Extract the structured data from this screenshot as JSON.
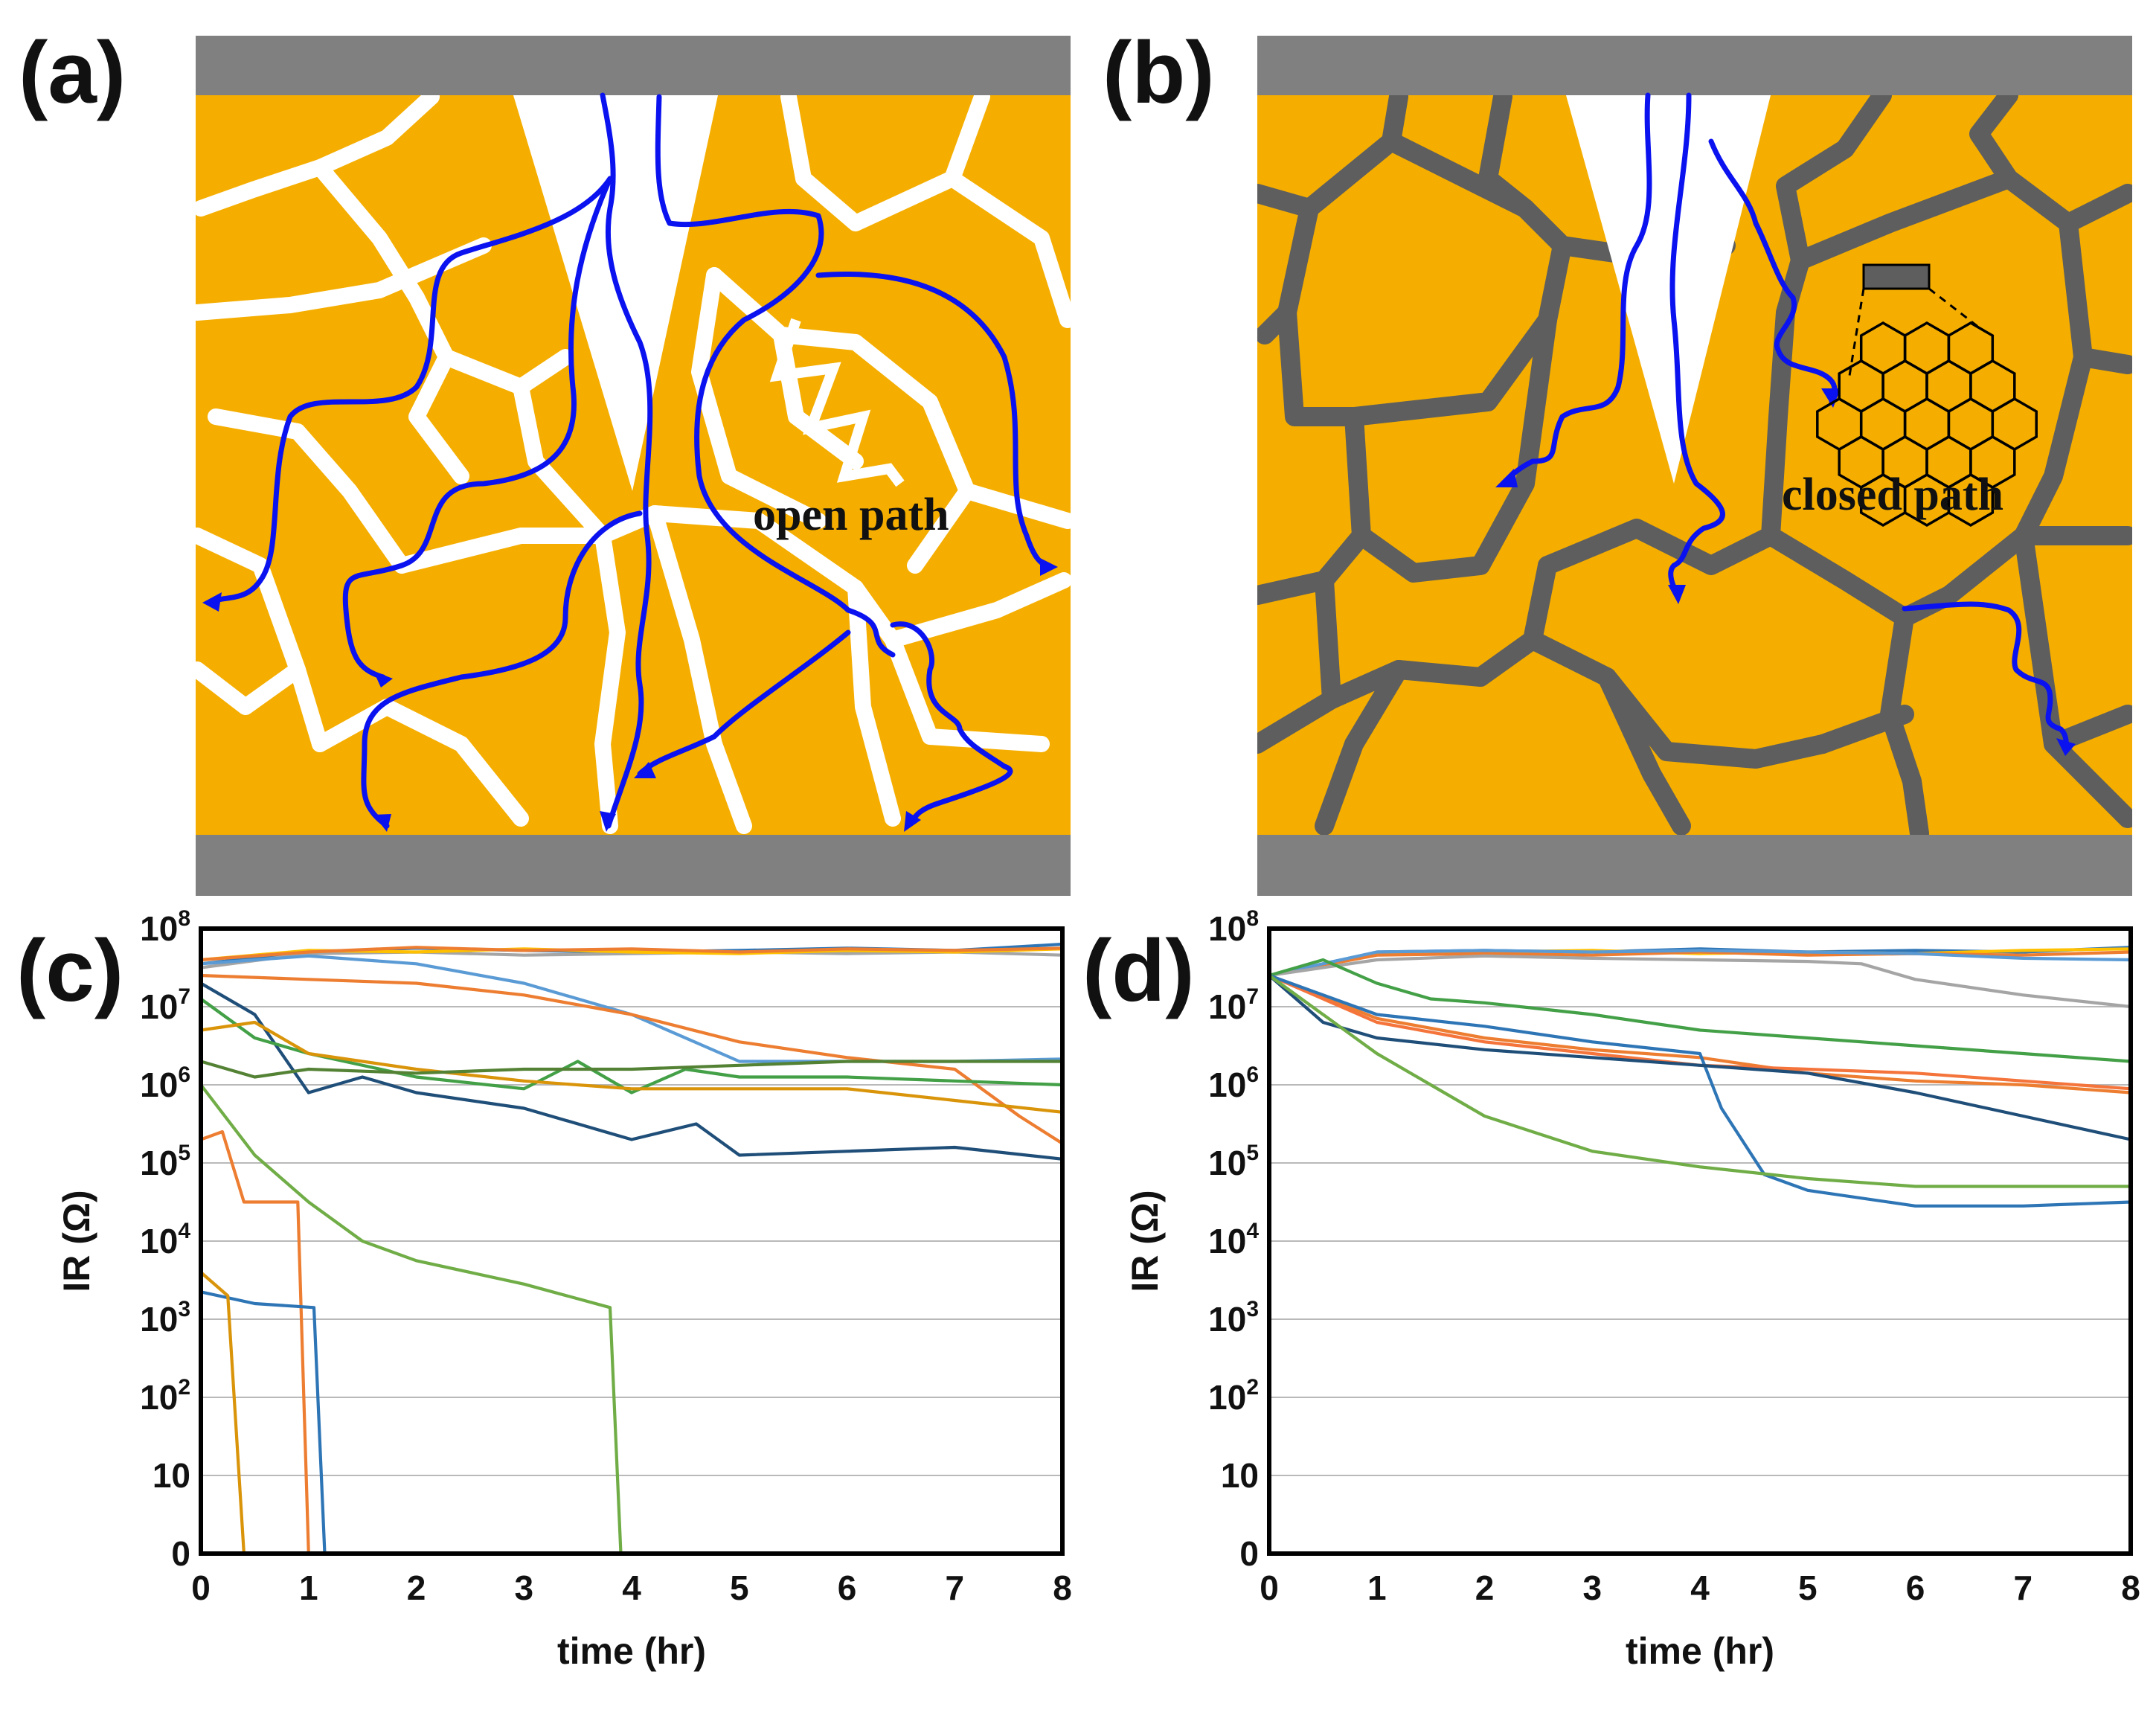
{
  "panels": {
    "a": {
      "label": "(a)",
      "annotation": "open path"
    },
    "b": {
      "label": "(b)",
      "annotation": "closed path"
    },
    "c": {
      "label": "(c)"
    },
    "d": {
      "label": "(d)"
    }
  },
  "colors": {
    "ceramic": "#F5AE00",
    "electrode": "#808080",
    "open_boundary": "#FFFFFF",
    "coated_boundary": "#5E5E5E",
    "leakage_path": "#0A12F0"
  },
  "icons": {
    "graphene_inset": "graphene-hexagon-icon"
  },
  "axes": {
    "x_label": "time (hr)",
    "y_label": "IR (Ω)",
    "x_ticks": [
      "0",
      "1",
      "2",
      "3",
      "4",
      "5",
      "6",
      "7",
      "8"
    ],
    "y_ticks": [
      {
        "base": "0",
        "exp": ""
      },
      {
        "base": "10",
        "exp": ""
      },
      {
        "base": "10",
        "exp": "2"
      },
      {
        "base": "10",
        "exp": "3"
      },
      {
        "base": "10",
        "exp": "4"
      },
      {
        "base": "10",
        "exp": "5"
      },
      {
        "base": "10",
        "exp": "6"
      },
      {
        "base": "10",
        "exp": "7"
      },
      {
        "base": "10",
        "exp": "8"
      }
    ]
  },
  "chart_data": [
    {
      "panel": "(c)",
      "type": "line",
      "title": "",
      "xlabel": "time (hr)",
      "ylabel": "IR (Ω)",
      "xlim": [
        0,
        8
      ],
      "ylim": [
        0,
        8
      ],
      "y_scale_note": "log10 decades; 0 marks failure (short)",
      "series": [
        {
          "name": "c1",
          "color": "#2E75B6",
          "x": [
            0,
            1,
            2,
            3,
            4,
            5,
            6,
            7,
            8
          ],
          "y": [
            7.55,
            7.7,
            7.75,
            7.72,
            7.7,
            7.72,
            7.75,
            7.72,
            7.8
          ]
        },
        {
          "name": "c2",
          "color": "#A5A5A5",
          "x": [
            0,
            1,
            2,
            3,
            4,
            5,
            6,
            7,
            8
          ],
          "y": [
            7.5,
            7.68,
            7.7,
            7.66,
            7.68,
            7.7,
            7.68,
            7.7,
            7.66
          ]
        },
        {
          "name": "c3",
          "color": "#FFC000",
          "x": [
            0,
            1,
            2,
            3,
            4,
            5,
            6,
            7,
            8
          ],
          "y": [
            7.6,
            7.72,
            7.7,
            7.74,
            7.7,
            7.68,
            7.72,
            7.7,
            7.74
          ]
        },
        {
          "name": "c4",
          "color": "#ED7D31",
          "x": [
            0,
            1,
            2,
            3,
            4,
            5,
            6,
            7,
            8
          ],
          "y": [
            7.6,
            7.7,
            7.76,
            7.72,
            7.74,
            7.7,
            7.74,
            7.72,
            7.75
          ]
        },
        {
          "name": "c5",
          "color": "#5B9BD5",
          "x": [
            0,
            1,
            2,
            3,
            4,
            5,
            6,
            7,
            8
          ],
          "y": [
            7.55,
            7.65,
            7.55,
            7.3,
            6.9,
            6.3,
            6.3,
            6.3,
            6.33
          ]
        },
        {
          "name": "c6",
          "color": "#ED7D31",
          "x": [
            0,
            1,
            2,
            3,
            4,
            5,
            6,
            7,
            7.6,
            8
          ],
          "y": [
            7.4,
            7.35,
            7.3,
            7.15,
            6.9,
            6.55,
            6.35,
            6.2,
            5.6,
            5.25
          ]
        },
        {
          "name": "c7",
          "color": "#1F4E79",
          "x": [
            0,
            0.5,
            1,
            1.5,
            2,
            3,
            4,
            4.6,
            5,
            6,
            7,
            8
          ],
          "y": [
            7.3,
            6.9,
            5.9,
            6.1,
            5.9,
            5.7,
            5.3,
            5.5,
            5.1,
            5.15,
            5.2,
            5.05
          ]
        },
        {
          "name": "c8",
          "color": "#43A047",
          "x": [
            0,
            0.5,
            1,
            2,
            3,
            3.5,
            4,
            4.5,
            5,
            6,
            7,
            8
          ],
          "y": [
            7.1,
            6.6,
            6.4,
            6.1,
            5.95,
            6.3,
            5.9,
            6.2,
            6.1,
            6.1,
            6.05,
            6.0
          ]
        },
        {
          "name": "c9",
          "color": "#D9940A",
          "x": [
            0,
            0.5,
            1,
            2,
            3,
            4,
            5,
            6,
            7,
            8
          ],
          "y": [
            6.7,
            6.8,
            6.4,
            6.2,
            6.05,
            5.95,
            5.95,
            5.95,
            5.8,
            5.65
          ]
        },
        {
          "name": "c10",
          "color": "#548235",
          "x": [
            0,
            0.5,
            1,
            2,
            3,
            4,
            5,
            6,
            7,
            8
          ],
          "y": [
            6.3,
            6.1,
            6.2,
            6.15,
            6.2,
            6.2,
            6.25,
            6.3,
            6.3,
            6.3
          ]
        },
        {
          "name": "c11",
          "color": "#70AD47",
          "x": [
            0,
            0.5,
            1,
            1.5,
            2,
            3,
            3.8,
            3.9
          ],
          "y": [
            6.0,
            5.1,
            4.5,
            4.0,
            3.75,
            3.45,
            3.15,
            0
          ]
        },
        {
          "name": "c12",
          "color": "#ED7D31",
          "x": [
            0,
            0.2,
            0.4,
            0.9,
            1.0
          ],
          "y": [
            5.3,
            5.4,
            4.5,
            4.5,
            0
          ]
        },
        {
          "name": "c13",
          "color": "#2E75B6",
          "x": [
            0,
            0.5,
            1.05,
            1.15
          ],
          "y": [
            3.35,
            3.2,
            3.15,
            0
          ]
        },
        {
          "name": "c14",
          "color": "#D9940A",
          "x": [
            0,
            0.25,
            0.4
          ],
          "y": [
            3.6,
            3.3,
            0
          ]
        }
      ]
    },
    {
      "panel": "(d)",
      "type": "line",
      "title": "",
      "xlabel": "time (hr)",
      "ylabel": "IR (Ω)",
      "xlim": [
        0,
        8
      ],
      "ylim": [
        0,
        8
      ],
      "y_scale_note": "log10 decades",
      "series": [
        {
          "name": "d1",
          "color": "#2E75B6",
          "x": [
            0,
            1,
            2,
            3,
            4,
            5,
            6,
            7,
            8
          ],
          "y": [
            7.4,
            7.7,
            7.72,
            7.7,
            7.74,
            7.7,
            7.72,
            7.7,
            7.76
          ]
        },
        {
          "name": "d2",
          "color": "#FFC000",
          "x": [
            0,
            1,
            2,
            3,
            4,
            5,
            6,
            7,
            8
          ],
          "y": [
            7.4,
            7.68,
            7.7,
            7.72,
            7.68,
            7.7,
            7.68,
            7.72,
            7.74
          ]
        },
        {
          "name": "d3",
          "color": "#ED7D31",
          "x": [
            0,
            1,
            2,
            3,
            4,
            5,
            6,
            7,
            8
          ],
          "y": [
            7.4,
            7.66,
            7.68,
            7.66,
            7.7,
            7.66,
            7.68,
            7.66,
            7.7
          ]
        },
        {
          "name": "d4",
          "color": "#5B9BD5",
          "x": [
            0,
            1,
            2,
            3,
            4,
            5,
            6,
            7,
            8
          ],
          "y": [
            7.4,
            7.7,
            7.72,
            7.7,
            7.72,
            7.7,
            7.68,
            7.62,
            7.6
          ]
        },
        {
          "name": "d5",
          "color": "#A5A5A5",
          "x": [
            0,
            1,
            2,
            3,
            4,
            5,
            5.5,
            6,
            7,
            8
          ],
          "y": [
            7.4,
            7.6,
            7.65,
            7.62,
            7.6,
            7.58,
            7.55,
            7.35,
            7.15,
            7.0
          ]
        },
        {
          "name": "d6",
          "color": "#43A047",
          "x": [
            0,
            0.5,
            1,
            1.5,
            2,
            3,
            4,
            5,
            6,
            7,
            8
          ],
          "y": [
            7.4,
            7.6,
            7.3,
            7.1,
            7.05,
            6.9,
            6.7,
            6.6,
            6.5,
            6.4,
            6.3
          ]
        },
        {
          "name": "d7",
          "color": "#ED7D31",
          "x": [
            0,
            1,
            2,
            3,
            4,
            5,
            6,
            7,
            8
          ],
          "y": [
            7.4,
            6.85,
            6.6,
            6.45,
            6.35,
            6.15,
            6.05,
            6.0,
            5.9
          ]
        },
        {
          "name": "d8",
          "color": "#F4743B",
          "x": [
            0,
            1,
            2,
            3,
            4,
            5,
            6,
            7,
            8
          ],
          "y": [
            7.4,
            6.8,
            6.55,
            6.4,
            6.25,
            6.2,
            6.15,
            6.05,
            5.95
          ]
        },
        {
          "name": "d9",
          "color": "#2E75B6",
          "x": [
            0,
            1,
            2,
            3,
            4,
            4.2,
            4.6,
            5,
            6,
            7,
            8
          ],
          "y": [
            7.4,
            6.9,
            6.75,
            6.55,
            6.4,
            5.7,
            4.85,
            4.65,
            4.45,
            4.45,
            4.5
          ]
        },
        {
          "name": "d10",
          "color": "#1F4E79",
          "x": [
            0,
            0.5,
            1,
            2,
            3,
            4,
            5,
            6,
            7,
            8
          ],
          "y": [
            7.4,
            6.8,
            6.6,
            6.45,
            6.35,
            6.25,
            6.15,
            5.9,
            5.6,
            5.3
          ]
        },
        {
          "name": "d11",
          "color": "#70AD47",
          "x": [
            0,
            0.5,
            1,
            1.5,
            2,
            3,
            4,
            5,
            6,
            7,
            8
          ],
          "y": [
            7.4,
            6.9,
            6.4,
            6.0,
            5.6,
            5.15,
            4.95,
            4.8,
            4.7,
            4.7,
            4.7
          ]
        }
      ]
    }
  ]
}
